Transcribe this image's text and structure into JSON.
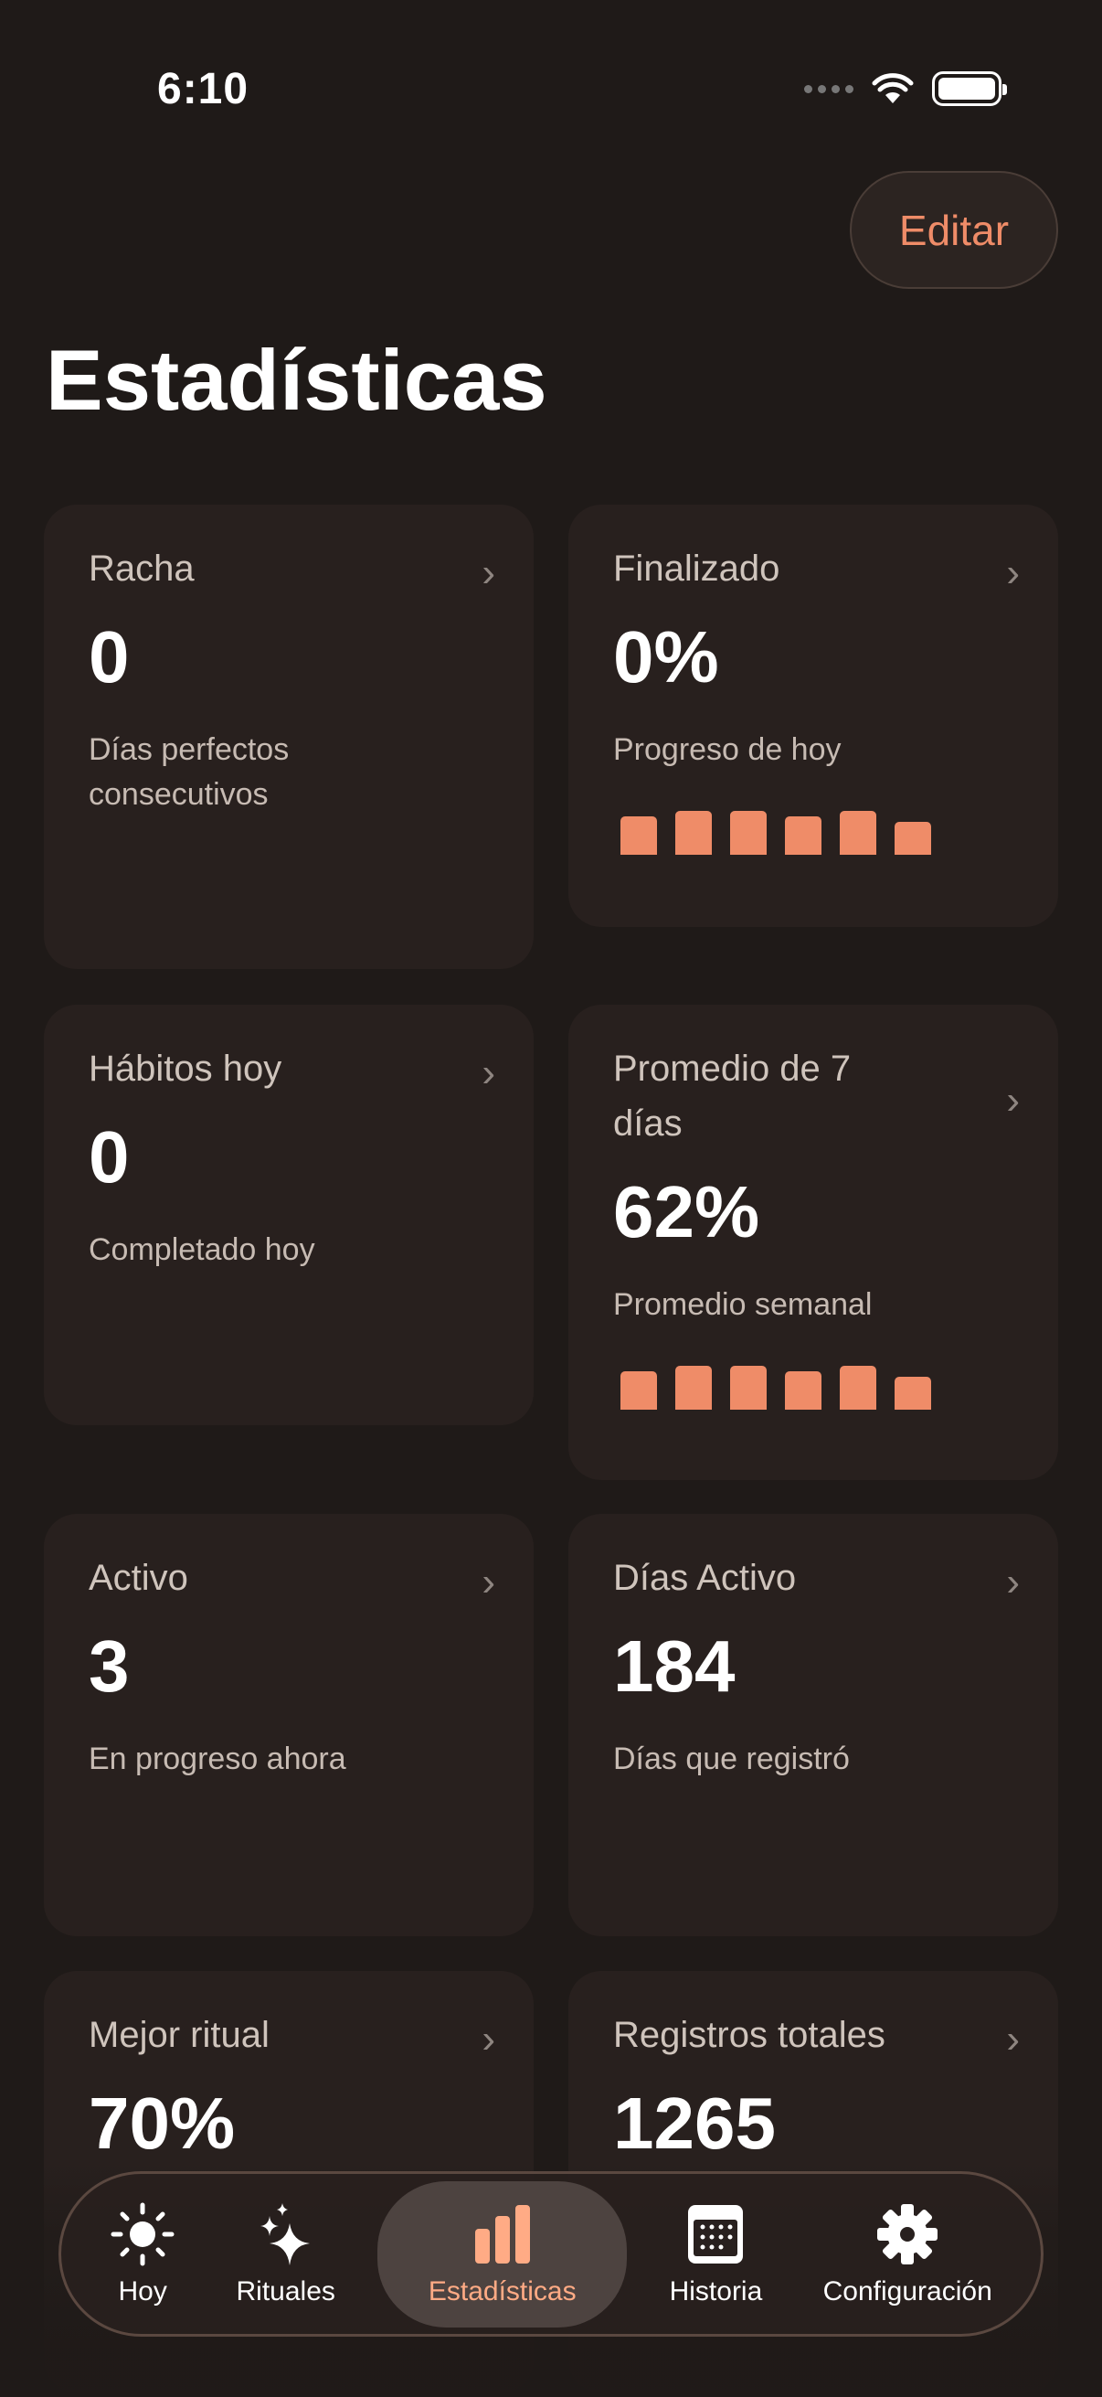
{
  "status_bar": {
    "time": "6:10"
  },
  "header": {
    "edit_label": "Editar",
    "title": "Estadísticas"
  },
  "colors": {
    "accent": "#ef8c68",
    "background": "#1f1a18",
    "card": "#28201e"
  },
  "cards": [
    {
      "title": "Racha",
      "value": "0",
      "subtitle": "Días perfectos consecutivos"
    },
    {
      "title": "Finalizado",
      "value": "0%",
      "subtitle": "Progreso de hoy",
      "bars": [
        0.875,
        1,
        1,
        0.875,
        1,
        0.75
      ]
    },
    {
      "title": "Hábitos hoy",
      "value": "0",
      "subtitle": "Completado hoy"
    },
    {
      "title": "Promedio de 7 días",
      "value": "62%",
      "subtitle": "Promedio semanal",
      "bars": [
        0.875,
        1,
        1,
        0.875,
        1,
        0.75
      ]
    },
    {
      "title": "Activo",
      "value": "3",
      "subtitle": "En progreso ahora"
    },
    {
      "title": "Días Activo",
      "value": "184",
      "subtitle": "Días que registró"
    },
    {
      "title": "Mejor ritual",
      "value": "70%",
      "subtitle": ""
    },
    {
      "title": "Registros totales",
      "value": "1265",
      "subtitle": ""
    }
  ],
  "tab_bar": {
    "items": [
      {
        "label": "Hoy",
        "icon": "sun-icon"
      },
      {
        "label": "Rituales",
        "icon": "sparkles-icon"
      },
      {
        "label": "Estadísticas",
        "icon": "bar-chart-icon",
        "active": true
      },
      {
        "label": "Historia",
        "icon": "calendar-icon"
      },
      {
        "label": "Configuración",
        "icon": "gear-icon"
      }
    ]
  }
}
